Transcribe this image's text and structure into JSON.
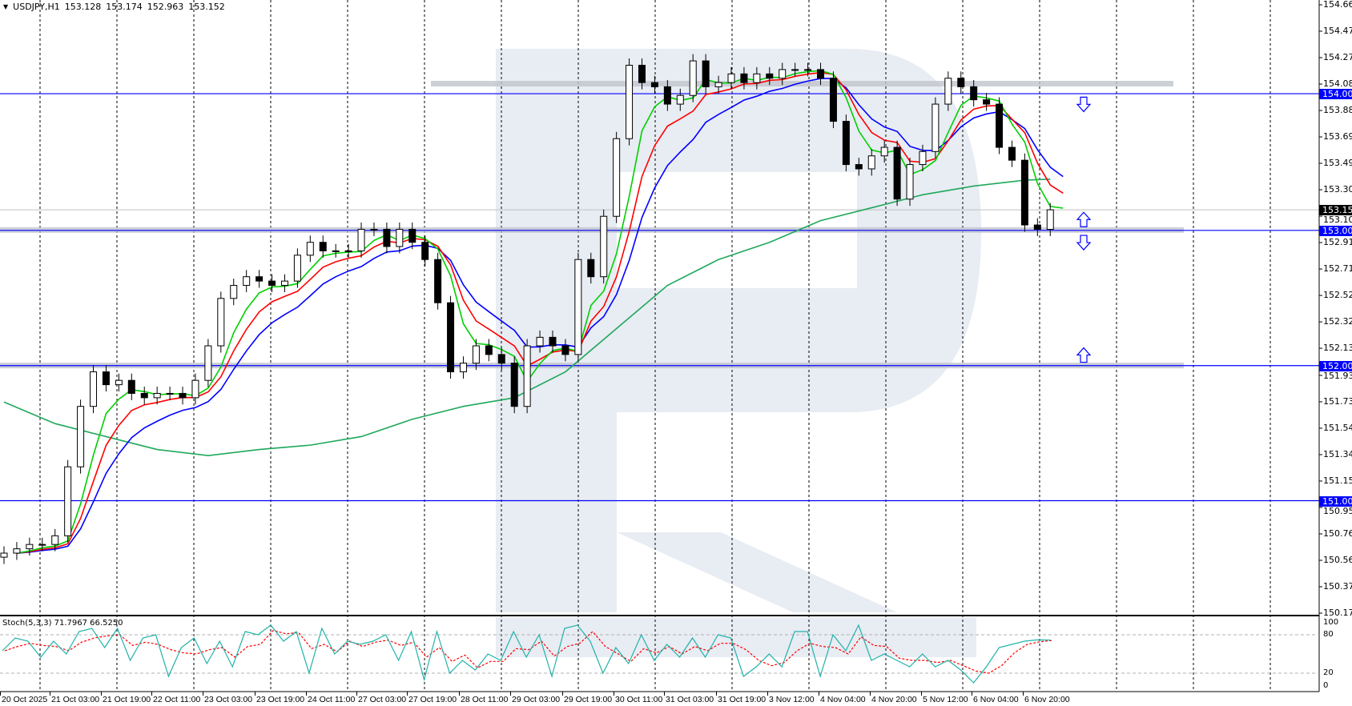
{
  "header": {
    "symbol": "USDJPY,H1",
    "open": "153.128",
    "high": "153.174",
    "low": "152.963",
    "close": "153.152",
    "menu_icon": "triangle-down-icon"
  },
  "stoch_label": "Stoch(5,3,3) 71.7967 66.5250",
  "colors": {
    "bull_body": "#ffffff",
    "bear_body": "#000000",
    "ma_fast": "#00d000",
    "ma_mid": "#ff0000",
    "ma_slow": "#0000ff",
    "ma_long": "#1fa85a",
    "level_line": "#0000ff",
    "band": "#c0c4cc",
    "stoch_main": "#20b2aa",
    "stoch_signal": "#ff0000",
    "watermark": "#e8ecf3"
  },
  "chart_data": {
    "type": "candlestick",
    "symbol": "USDJPY",
    "timeframe": "H1",
    "ylim": [
      150.175,
      154.665
    ],
    "grid": true,
    "y_ticks": [
      "154.665",
      "154.470",
      "154.275",
      "154.080",
      "153.885",
      "153.690",
      "153.495",
      "153.300",
      "153.105",
      "152.910",
      "152.715",
      "152.520",
      "152.325",
      "152.130",
      "151.930",
      "151.735",
      "151.540",
      "151.345",
      "151.150",
      "150.955",
      "150.760",
      "150.565",
      "150.370",
      "150.175"
    ],
    "x_ticks": [
      "20 Oct 2025",
      "21 Oct 03:00",
      "21 Oct 19:00",
      "22 Oct 11:00",
      "23 Oct 03:00",
      "23 Oct 19:00",
      "24 Oct 11:00",
      "27 Oct 03:00",
      "27 Oct 19:00",
      "28 Oct 11:00",
      "29 Oct 03:00",
      "29 Oct 19:00",
      "30 Oct 11:00",
      "31 Oct 03:00",
      "31 Oct 19:00",
      "3 Nov 12:00",
      "4 Nov 04:00",
      "4 Nov 20:00",
      "5 Nov 12:00",
      "6 Nov 04:00",
      "6 Nov 20:00"
    ],
    "closes": [
      150.618,
      150.65,
      150.682,
      150.682,
      150.746,
      151.255,
      151.701,
      151.956,
      151.861,
      151.893,
      151.797,
      151.765,
      151.797,
      151.797,
      151.765,
      151.893,
      152.148,
      152.498,
      152.594,
      152.658,
      152.626,
      152.594,
      152.626,
      152.817,
      152.912,
      152.849,
      152.849,
      152.849,
      153.008,
      153.008,
      152.881,
      153.008,
      152.912,
      152.785,
      152.466,
      151.956,
      152.02,
      152.148,
      152.084,
      152.02,
      151.701,
      152.148,
      152.211,
      152.148,
      152.084,
      152.785,
      152.658,
      153.104,
      153.677,
      154.219,
      154.091,
      154.06,
      153.932,
      153.996,
      154.251,
      154.06,
      154.091,
      154.155,
      154.091,
      154.155,
      154.123,
      154.187,
      154.187,
      154.187,
      154.123,
      153.805,
      153.486,
      153.454,
      153.55,
      153.613,
      153.231,
      153.486,
      153.582,
      153.932,
      154.123,
      154.06,
      153.964,
      153.932,
      153.613,
      153.518,
      153.04,
      153.008,
      153.152
    ],
    "ma_long_samples": [
      151.733,
      151.574,
      151.478,
      151.383,
      151.338,
      151.383,
      151.415,
      151.478,
      151.606,
      151.701,
      151.765,
      151.956,
      152.275,
      152.594,
      152.785,
      152.912,
      153.072,
      153.167,
      153.263,
      153.327,
      153.371,
      153.378
    ],
    "levels": [
      {
        "price": 154.009,
        "label": "154.009"
      },
      {
        "price": 153.0,
        "label": "153.000"
      },
      {
        "price": 152.002,
        "label": "152.002"
      },
      {
        "price": 151.005,
        "label": "151.005"
      }
    ],
    "current_price": {
      "price": 153.152,
      "label": "153.152"
    },
    "bands": [
      154.08,
      153.0,
      152.0
    ],
    "arrows": [
      {
        "dir": "down",
        "price": 153.93
      },
      {
        "dir": "up",
        "price": 153.08
      },
      {
        "dir": "down",
        "price": 152.91
      },
      {
        "dir": "up",
        "price": 152.08
      }
    ],
    "stochastic": {
      "params": "5,3,3",
      "ylim": [
        0,
        100
      ],
      "levels": [
        80,
        20
      ],
      "y_ticks": [
        "100",
        "80",
        "20",
        "0"
      ],
      "main": [
        55,
        75,
        70,
        45,
        70,
        50,
        85,
        90,
        60,
        90,
        40,
        75,
        80,
        15,
        60,
        75,
        35,
        70,
        30,
        85,
        80,
        95,
        70,
        85,
        20,
        90,
        50,
        70,
        65,
        70,
        80,
        40,
        85,
        10,
        85,
        20,
        40,
        25,
        50,
        40,
        85,
        45,
        80,
        15,
        90,
        95,
        70,
        20,
        60,
        35,
        80,
        40,
        65,
        45,
        75,
        45,
        80,
        75,
        15,
        30,
        50,
        30,
        85,
        85,
        15,
        80,
        55,
        95,
        40,
        50,
        40,
        30,
        50,
        30,
        40,
        25,
        5,
        30,
        60,
        65,
        70,
        72,
        71.8
      ]
    }
  }
}
